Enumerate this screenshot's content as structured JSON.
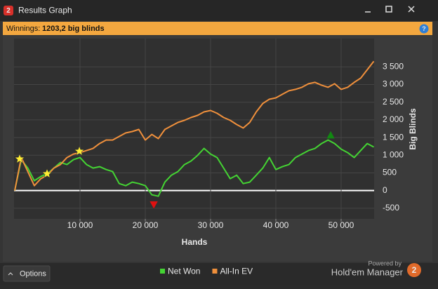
{
  "window": {
    "title": "Results Graph",
    "icon": "2",
    "winnings_label": "Winnings:",
    "winnings_value": "1203,2 big blinds",
    "help": "?",
    "options": "Options",
    "powered_by": "Powered by",
    "brand": "Hold'em Manager",
    "brand_logo": "2"
  },
  "chart_data": {
    "type": "line",
    "xlabel": "Hands",
    "ylabel": "Big Blinds",
    "x": [
      0,
      1000,
      2000,
      3000,
      4000,
      5000,
      6000,
      7000,
      8000,
      9000,
      10000,
      11000,
      12000,
      13000,
      14000,
      15000,
      16000,
      17000,
      18000,
      19000,
      20000,
      21000,
      22000,
      23000,
      24000,
      25000,
      26000,
      27000,
      28000,
      29000,
      30000,
      31000,
      32000,
      33000,
      34000,
      35000,
      36000,
      37000,
      38000,
      39000,
      40000,
      41000,
      42000,
      43000,
      44000,
      45000,
      46000,
      47000,
      48000,
      49000,
      50000,
      51000,
      52000,
      53000,
      54000,
      55000
    ],
    "series": [
      {
        "name": "Net Won",
        "color": "#44d433",
        "values": [
          0,
          875,
          636,
          278,
          398,
          477,
          636,
          795,
          735,
          875,
          934,
          735,
          636,
          676,
          596,
          537,
          199,
          139,
          239,
          199,
          139,
          -119,
          -159,
          239,
          437,
          537,
          735,
          835,
          994,
          1193,
          1034,
          934,
          636,
          338,
          437,
          199,
          239,
          437,
          636,
          934,
          596,
          676,
          735,
          934,
          1034,
          1133,
          1193,
          1332,
          1431,
          1332,
          1173,
          1074,
          934,
          1133,
          1332,
          1233
        ]
      },
      {
        "name": "All-In EV",
        "color": "#f0903c",
        "values": [
          0,
          934,
          537,
          139,
          338,
          437,
          636,
          735,
          934,
          1034,
          1074,
          1133,
          1193,
          1332,
          1431,
          1431,
          1531,
          1630,
          1670,
          1730,
          1431,
          1590,
          1471,
          1730,
          1829,
          1928,
          1988,
          2068,
          2127,
          2227,
          2266,
          2187,
          2068,
          1988,
          1869,
          1769,
          1928,
          2227,
          2465,
          2584,
          2624,
          2724,
          2823,
          2863,
          2922,
          3022,
          3062,
          2982,
          2922,
          3022,
          2863,
          2922,
          3062,
          3181,
          3419,
          3658
        ]
      }
    ],
    "markers": [
      {
        "shape": "star",
        "color": "#ffee33",
        "x": 750,
        "y": 895
      },
      {
        "shape": "star",
        "color": "#ffee33",
        "x": 4950,
        "y": 477
      },
      {
        "shape": "star",
        "color": "#ffee33",
        "x": 9900,
        "y": 1113
      },
      {
        "shape": "triangle-down",
        "color": "#e01010",
        "x": 21300,
        "y": -400
      },
      {
        "shape": "triangle-up",
        "color": "#118811",
        "x": 48400,
        "y": 1570
      }
    ],
    "xlim": [
      0,
      55000
    ],
    "xticks": [
      {
        "value": 10000,
        "label": "10 000"
      },
      {
        "value": 20000,
        "label": "20 000"
      },
      {
        "value": 30000,
        "label": "30 000"
      },
      {
        "value": 40000,
        "label": "40 000"
      },
      {
        "value": 50000,
        "label": "50 000"
      }
    ],
    "ylim": [
      -800,
      4300
    ],
    "yticks": [
      -500,
      0,
      500,
      {
        "value": 1000,
        "label": "1 000"
      },
      {
        "value": 1500,
        "label": "1 500"
      },
      {
        "value": 2000,
        "label": "2 000"
      },
      {
        "value": 2500,
        "label": "2 500"
      },
      {
        "value": 3000,
        "label": "3 000"
      },
      {
        "value": 3500,
        "label": "3 500"
      }
    ],
    "grid": true,
    "zero_line_color": "#ffffff"
  }
}
